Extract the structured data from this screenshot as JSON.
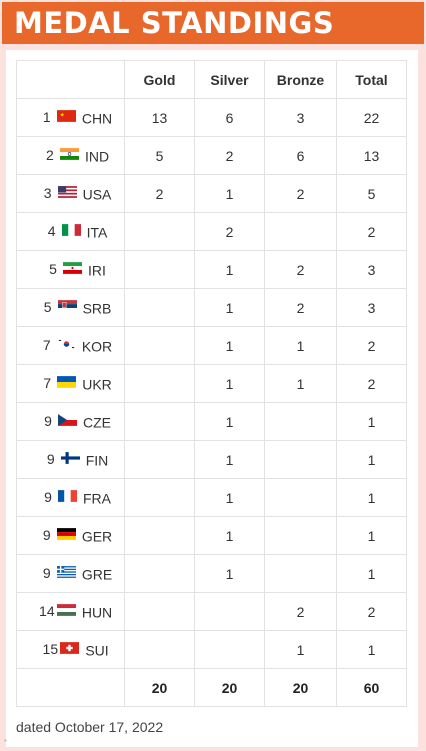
{
  "header": {
    "title": "MEDAL STANDINGS"
  },
  "table": {
    "headers": [
      "Gold",
      "Silver",
      "Bronze",
      "Total"
    ],
    "rows": [
      {
        "rank": "1",
        "country": "CHN",
        "flag": "china-flag-icon",
        "gold": "13",
        "silver": "6",
        "bronze": "3",
        "total": "22"
      },
      {
        "rank": "2",
        "country": "IND",
        "flag": "india-flag-icon",
        "gold": "5",
        "silver": "2",
        "bronze": "6",
        "total": "13"
      },
      {
        "rank": "3",
        "country": "USA",
        "flag": "usa-flag-icon",
        "gold": "2",
        "silver": "1",
        "bronze": "2",
        "total": "5"
      },
      {
        "rank": "4",
        "country": "ITA",
        "flag": "italy-flag-icon",
        "gold": "",
        "silver": "2",
        "bronze": "",
        "total": "2"
      },
      {
        "rank": "5",
        "country": "IRI",
        "flag": "iran-flag-icon",
        "gold": "",
        "silver": "1",
        "bronze": "2",
        "total": "3"
      },
      {
        "rank": "5",
        "country": "SRB",
        "flag": "serbia-flag-icon",
        "gold": "",
        "silver": "1",
        "bronze": "2",
        "total": "3"
      },
      {
        "rank": "7",
        "country": "KOR",
        "flag": "korea-flag-icon",
        "gold": "",
        "silver": "1",
        "bronze": "1",
        "total": "2"
      },
      {
        "rank": "7",
        "country": "UKR",
        "flag": "ukraine-flag-icon",
        "gold": "",
        "silver": "1",
        "bronze": "1",
        "total": "2"
      },
      {
        "rank": "9",
        "country": "CZE",
        "flag": "czech-flag-icon",
        "gold": "",
        "silver": "1",
        "bronze": "",
        "total": "1"
      },
      {
        "rank": "9",
        "country": "FIN",
        "flag": "finland-flag-icon",
        "gold": "",
        "silver": "1",
        "bronze": "",
        "total": "1"
      },
      {
        "rank": "9",
        "country": "FRA",
        "flag": "france-flag-icon",
        "gold": "",
        "silver": "1",
        "bronze": "",
        "total": "1"
      },
      {
        "rank": "9",
        "country": "GER",
        "flag": "germany-flag-icon",
        "gold": "",
        "silver": "1",
        "bronze": "",
        "total": "1"
      },
      {
        "rank": "9",
        "country": "GRE",
        "flag": "greece-flag-icon",
        "gold": "",
        "silver": "1",
        "bronze": "",
        "total": "1"
      },
      {
        "rank": "14",
        "country": "HUN",
        "flag": "hungary-flag-icon",
        "gold": "",
        "silver": "",
        "bronze": "2",
        "total": "2"
      },
      {
        "rank": "15",
        "country": "SUI",
        "flag": "switzerland-flag-icon",
        "gold": "",
        "silver": "",
        "bronze": "1",
        "total": "1"
      }
    ],
    "totals": {
      "gold": "20",
      "silver": "20",
      "bronze": "20",
      "total": "60"
    }
  },
  "footer": {
    "dated": "dated October 17, 2022"
  },
  "colors": {
    "header_bg": "#e8672b",
    "gold": "#b29b2f",
    "silver": "#a8a8a8",
    "bronze": "#7a6a5c"
  }
}
